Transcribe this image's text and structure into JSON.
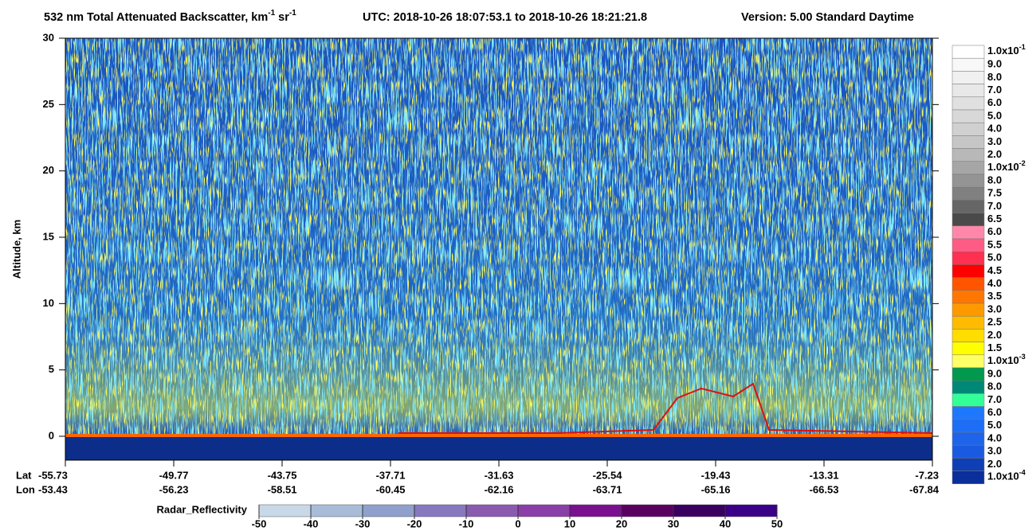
{
  "chart_data": {
    "type": "heatmap",
    "title": {
      "text": "532 nm Total Attenuated Backscatter, km",
      "sup1": "-1",
      "mid": " sr",
      "sup2": "-1",
      "utc": "UTC:  2018-10-26 18:07:53.1  to  2018-10-26 18:21:21.8",
      "version": "Version: 5.00  Standard  Daytime"
    },
    "y_label": "Altitude, km",
    "ylim": [
      -1.8,
      30
    ],
    "yticks": [
      0,
      5,
      10,
      15,
      20,
      25,
      30
    ],
    "x_row_labels": [
      "Lat",
      "Lon"
    ],
    "lat": [
      "-55.73",
      "-49.77",
      "-43.75",
      "-37.71",
      "-31.63",
      "-25.54",
      "-19.43",
      "-13.31",
      "-7.23"
    ],
    "lon": [
      "-53.43",
      "-56.23",
      "-58.51",
      "-60.45",
      "-62.16",
      "-63.71",
      "-65.16",
      "-66.53",
      "-67.84"
    ],
    "colorbar": {
      "labels": [
        {
          "base": "1.0x10",
          "exp": "-1"
        },
        "9.0",
        "8.0",
        "7.0",
        "6.0",
        "5.0",
        "4.0",
        "3.0",
        "2.0",
        {
          "base": "1.0x10",
          "exp": "-2"
        },
        "8.0",
        "7.5",
        "7.0",
        "6.5",
        "6.0",
        "5.5",
        "5.0",
        "4.5",
        "4.0",
        "3.5",
        "3.0",
        "2.5",
        "2.0",
        "1.5",
        {
          "base": "1.0x10",
          "exp": "-3"
        },
        "9.0",
        "8.0",
        "7.0",
        "6.0",
        "5.0",
        "4.0",
        "3.0",
        "2.0",
        {
          "base": "1.0x10",
          "exp": "-4"
        }
      ],
      "colors": [
        "#ffffff",
        "#f8f8f8",
        "#f0f0f0",
        "#e8e8e8",
        "#e0e0e0",
        "#d8d8d8",
        "#d0d0d0",
        "#c6c6c6",
        "#b8b8b8",
        "#a6a6a6",
        "#949494",
        "#808080",
        "#666666",
        "#4a4a4a",
        "#ff88aa",
        "#ff5c85",
        "#ff3050",
        "#ff0000",
        "#ff5500",
        "#ff7700",
        "#ff9900",
        "#ffbb00",
        "#ffdd00",
        "#ffff00",
        "#ffff66",
        "#00994d",
        "#008877",
        "#33ff99",
        "#1e78ff",
        "#1e6ef5",
        "#1e64eb",
        "#1a5ae0",
        "#0f3fb5",
        "#0a2e9a"
      ]
    },
    "radar": {
      "label": "Radar_Reflectivity",
      "ticks": [
        -50,
        -40,
        -30,
        -20,
        -10,
        0,
        10,
        20,
        30,
        40,
        50
      ],
      "colors": [
        "#c8d8e8",
        "#a8bcd8",
        "#90a0cc",
        "#8878c0",
        "#8a5ab0",
        "#8a3ea8",
        "#7a1090",
        "#5a0060",
        "#3a0060",
        "#3a0088"
      ]
    }
  }
}
